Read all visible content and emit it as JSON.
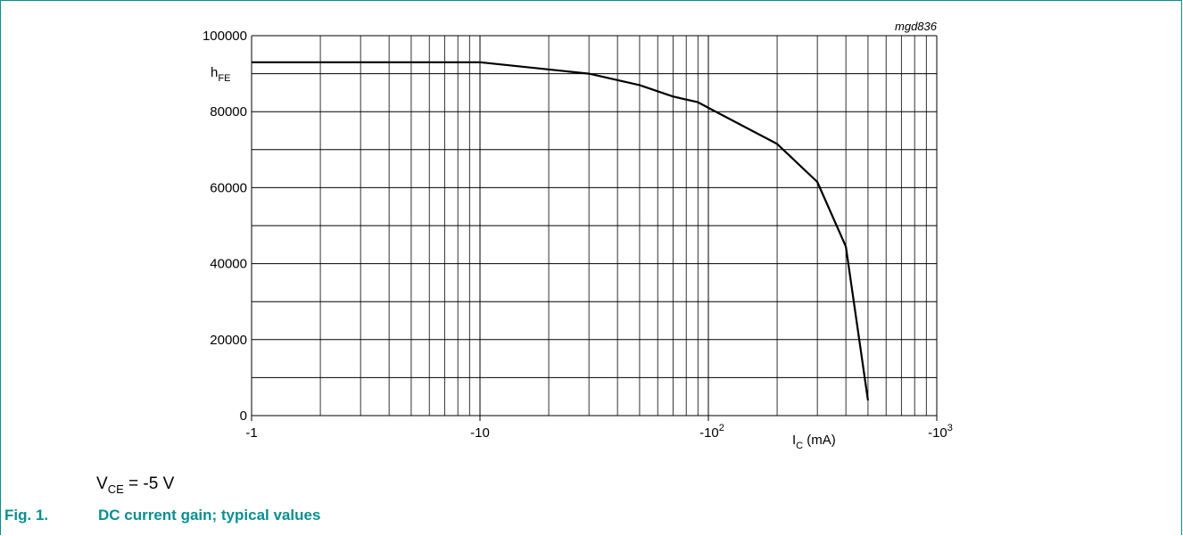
{
  "chart_data": {
    "type": "line",
    "x_scale": "log",
    "x_axis_sign": "negative",
    "xlim": [
      -1,
      -1000
    ],
    "ylim": [
      0,
      100000
    ],
    "grid": true,
    "y_ticks": [
      "0",
      "20000",
      "40000",
      "60000",
      "80000",
      "100000"
    ],
    "y_tick_values": [
      0,
      20000,
      40000,
      60000,
      80000,
      100000
    ],
    "x_ticks": [
      {
        "value": -1,
        "base": "-1",
        "exp": ""
      },
      {
        "value": -10,
        "base": "-10",
        "exp": ""
      },
      {
        "value": -100,
        "base": "-10",
        "exp": "2"
      },
      {
        "value": -1000,
        "base": "-10",
        "exp": "3"
      }
    ],
    "ylabel": {
      "main": "h",
      "sub": "FE"
    },
    "xlabel": {
      "main": "I",
      "sub": "C",
      "unit": " (mA)"
    },
    "code": "mgd836",
    "series": [
      {
        "x": [
          -1,
          -10,
          -30,
          -50,
          -70,
          -90,
          -100,
          -200,
          -300,
          -400,
          -500
        ],
        "values": [
          93000,
          93000,
          90000,
          87000,
          84000,
          82500,
          81000,
          71500,
          61500,
          44500,
          4000
        ]
      }
    ]
  },
  "condition": {
    "main": "V",
    "sub": "CE",
    "rest": " = -5 V"
  },
  "caption": {
    "number": "Fig. 1.",
    "title": "DC current gain; typical values"
  },
  "colors": {
    "accent": "#0a8f92",
    "curve": "#000000",
    "grid": "#000000"
  }
}
